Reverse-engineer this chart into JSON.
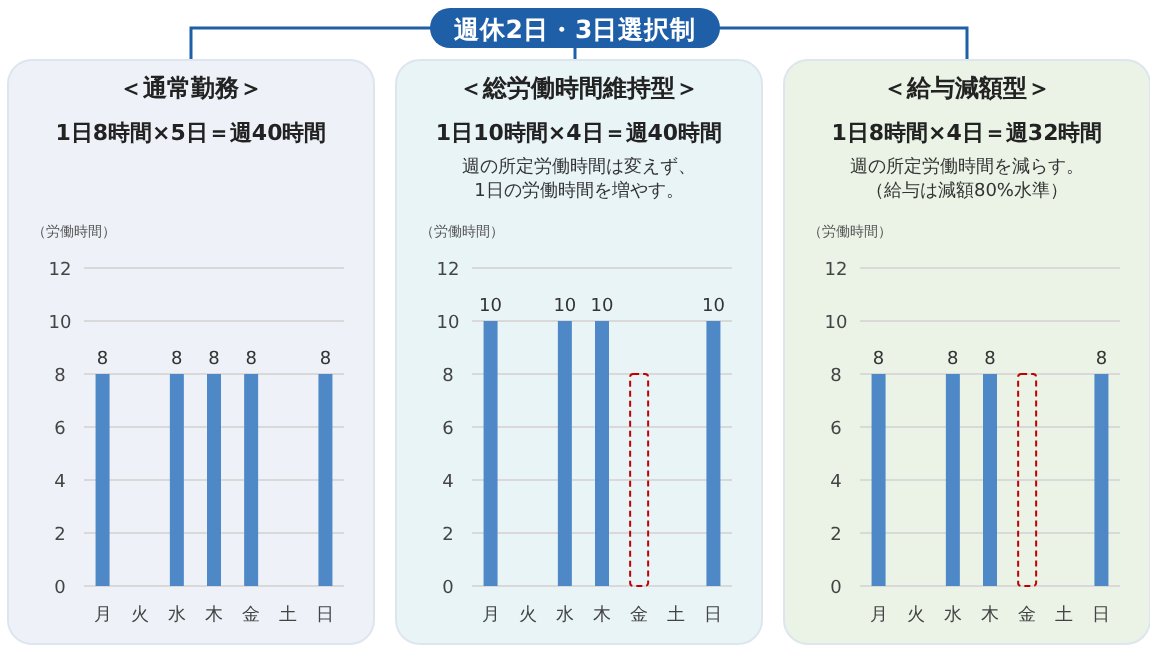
{
  "chart_data": [
    {
      "type": "other",
      "title": "週休2日・3日選択制"
    },
    {
      "type": "bar",
      "title": "＜通常勤務＞",
      "subtitle": "1日8時間×5日＝週40時間",
      "ylabel": "（労働時間）",
      "categories": [
        "月",
        "火",
        "水",
        "木",
        "金",
        "土",
        "日"
      ],
      "ylim": [
        0,
        12
      ],
      "yticks": [
        0,
        2,
        4,
        6,
        8,
        10,
        12
      ],
      "grid": "y",
      "series": [
        {
          "color": "#4f88c6",
          "values": [
            8,
            null,
            8,
            8,
            8,
            null,
            8
          ],
          "value_labels": [
            "8",
            null,
            "8",
            "8",
            "8",
            null,
            "8"
          ]
        }
      ]
    },
    {
      "type": "bar",
      "title": "＜総労働時間維持型＞",
      "subtitle": "1日10時間×4日＝週40時間",
      "annotations": [
        "週の所定労働時間は変えず、",
        "1日の労働時間を増やす。"
      ],
      "ylabel": "（労働時間）",
      "categories": [
        "月",
        "火",
        "水",
        "木",
        "金",
        "土",
        "日"
      ],
      "ylim": [
        0,
        12
      ],
      "yticks": [
        0,
        2,
        4,
        6,
        8,
        10,
        12
      ],
      "grid": "y",
      "series": [
        {
          "color": "#4f88c6",
          "values": [
            10,
            null,
            10,
            10,
            null,
            null,
            10
          ],
          "value_labels": [
            "10",
            null,
            "10",
            "10",
            null,
            null,
            "10"
          ]
        },
        {
          "color": "#c00000",
          "line_style": "dashed",
          "values": [
            null,
            null,
            null,
            null,
            8,
            null,
            null
          ]
        }
      ]
    },
    {
      "type": "bar",
      "title": "＜給与減額型＞",
      "subtitle": "1日8時間×4日＝週32時間",
      "annotations": [
        "週の所定労働時間を減らす。",
        "（給与は減額80%水準）"
      ],
      "ylabel": "（労働時間）",
      "categories": [
        "月",
        "火",
        "水",
        "木",
        "金",
        "土",
        "日"
      ],
      "ylim": [
        0,
        12
      ],
      "yticks": [
        0,
        2,
        4,
        6,
        8,
        10,
        12
      ],
      "grid": "y",
      "series": [
        {
          "color": "#4f88c6",
          "values": [
            8,
            null,
            8,
            8,
            null,
            null,
            8
          ],
          "value_labels": [
            "8",
            null,
            "8",
            "8",
            null,
            null,
            "8"
          ]
        },
        {
          "color": "#c00000",
          "line_style": "dashed",
          "values": [
            null,
            null,
            null,
            null,
            8,
            null,
            null
          ]
        }
      ]
    }
  ]
}
